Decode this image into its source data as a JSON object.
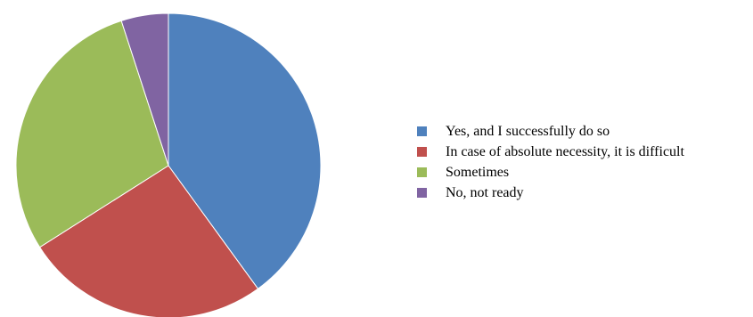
{
  "chart_data": {
    "type": "pie",
    "title": "",
    "legend_position": "right",
    "start_angle_deg": 0,
    "direction": "clockwise",
    "categories": [
      "Yes, and I successfully do so",
      "In case of absolute necessity, it is difficult",
      "Sometimes",
      "No, not ready"
    ],
    "values": [
      40,
      26,
      29,
      5
    ],
    "colors": [
      "#4f81bd",
      "#c0504d",
      "#9bbb59",
      "#8064a2"
    ]
  }
}
